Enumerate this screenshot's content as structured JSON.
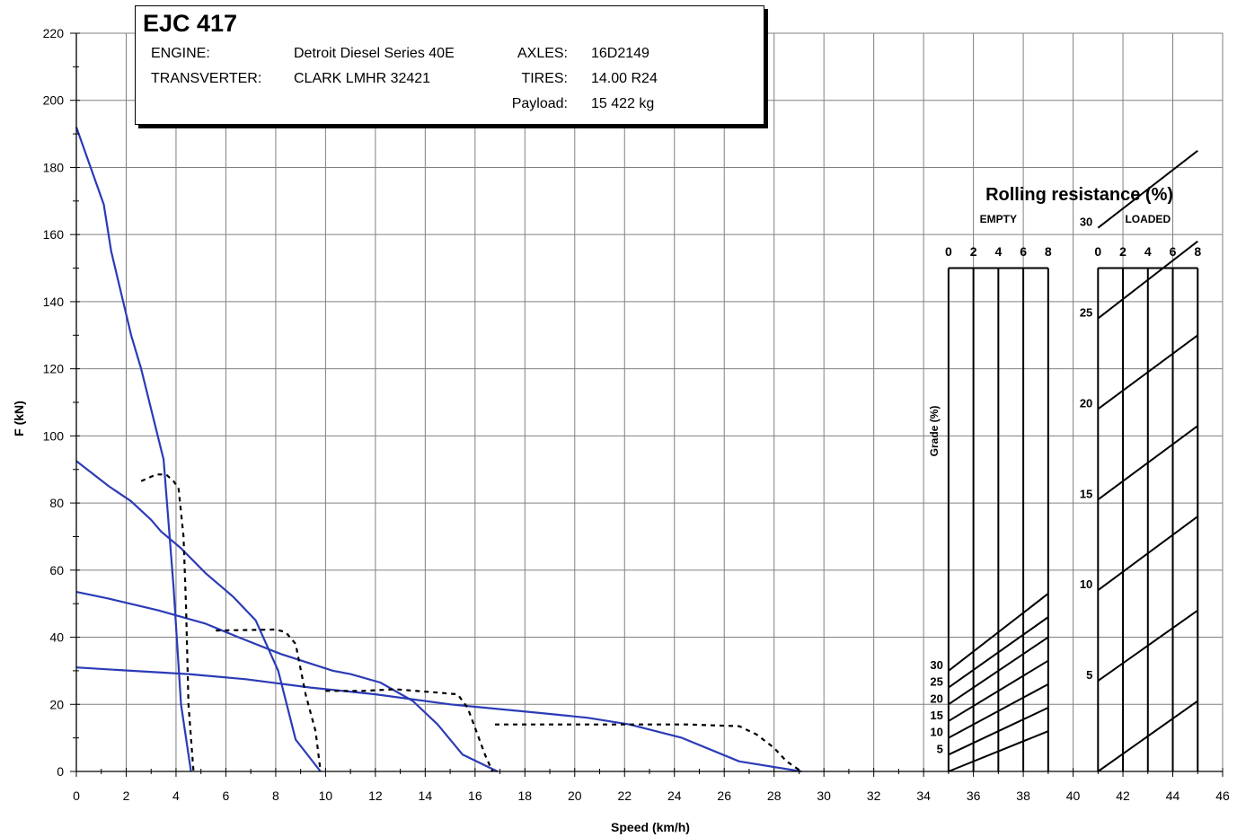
{
  "info_box": {
    "title": "EJC 417",
    "engine_label": "ENGINE:",
    "engine_value": "Detroit Diesel Series 40E",
    "transverter_label": "TRANSVERTER:",
    "transverter_value": "CLARK LMHR 32421",
    "axles_label": "AXLES:",
    "axles_value": "16D2149",
    "tires_label": "TIRES:",
    "tires_value": "14.00 R24",
    "payload_label": "Payload:",
    "payload_value": "15 422 kg"
  },
  "chart_data": {
    "type": "line",
    "xlabel": "Speed (km/h)",
    "ylabel": "F (kN)",
    "xlim": [
      0,
      46
    ],
    "ylim": [
      0,
      220
    ],
    "x_ticks": [
      "0",
      "2",
      "4",
      "6",
      "8",
      "10",
      "12",
      "14",
      "16",
      "18",
      "20",
      "22",
      "24",
      "26",
      "28",
      "30",
      "32",
      "34",
      "36",
      "38",
      "40",
      "42",
      "44",
      "46"
    ],
    "y_ticks": [
      "0",
      "20",
      "40",
      "60",
      "80",
      "100",
      "120",
      "140",
      "160",
      "180",
      "200",
      "220"
    ],
    "grid": true,
    "colors": {
      "tractive": "#2b3bb6",
      "retarder": "#000000",
      "grid": "#808080"
    },
    "series": [
      {
        "style": "solid",
        "points": [
          [
            0,
            192
          ],
          [
            1.1,
            169
          ],
          [
            1.4,
            155
          ],
          [
            2.2,
            130
          ],
          [
            2.6,
            120
          ],
          [
            3.4,
            96
          ],
          [
            3.5,
            93
          ],
          [
            3.9,
            55
          ],
          [
            4.2,
            20
          ],
          [
            4.6,
            0
          ]
        ]
      },
      {
        "style": "solid",
        "points": [
          [
            0,
            92.5
          ],
          [
            1.3,
            85
          ],
          [
            2.2,
            80.5
          ],
          [
            3,
            75
          ],
          [
            3.4,
            71.5
          ],
          [
            4.2,
            66.5
          ],
          [
            5.2,
            59
          ],
          [
            6.3,
            52
          ],
          [
            7.2,
            45
          ],
          [
            8.1,
            30
          ],
          [
            8.8,
            9.5
          ],
          [
            9.8,
            0
          ]
        ]
      },
      {
        "style": "solid",
        "points": [
          [
            0,
            53.5
          ],
          [
            1.3,
            51.5
          ],
          [
            3.3,
            48
          ],
          [
            5.2,
            44
          ],
          [
            6.5,
            40
          ],
          [
            8.2,
            35
          ],
          [
            10.3,
            30
          ],
          [
            11,
            29
          ],
          [
            12.2,
            26.5
          ],
          [
            13.5,
            21
          ],
          [
            14.5,
            14
          ],
          [
            15.5,
            5
          ],
          [
            16.9,
            0
          ]
        ]
      },
      {
        "style": "solid",
        "points": [
          [
            0,
            31
          ],
          [
            2.2,
            30
          ],
          [
            4.5,
            29
          ],
          [
            6.8,
            27.5
          ],
          [
            9.4,
            25
          ],
          [
            12,
            23
          ],
          [
            15,
            20
          ],
          [
            18.5,
            17.5
          ],
          [
            20.5,
            16
          ],
          [
            22.2,
            14
          ],
          [
            24.3,
            10
          ],
          [
            26.6,
            3
          ],
          [
            29.1,
            0
          ]
        ]
      },
      {
        "style": "dashed",
        "points": [
          [
            2.6,
            86.5
          ],
          [
            3.2,
            88.5
          ],
          [
            3.6,
            88.5
          ],
          [
            3.9,
            86.5
          ],
          [
            4.1,
            84.5
          ],
          [
            4.3,
            70
          ],
          [
            4.4,
            49
          ],
          [
            4.5,
            20
          ],
          [
            4.7,
            0
          ]
        ]
      },
      {
        "style": "dashed",
        "points": [
          [
            5.6,
            42
          ],
          [
            8,
            42.3
          ],
          [
            8.4,
            41.5
          ],
          [
            8.8,
            38
          ],
          [
            9.2,
            23
          ],
          [
            9.6,
            12
          ],
          [
            9.8,
            0
          ]
        ]
      },
      {
        "style": "dashed",
        "points": [
          [
            10,
            24
          ],
          [
            11.5,
            24
          ],
          [
            12.8,
            24.5
          ],
          [
            14.5,
            23.5
          ],
          [
            15.3,
            23
          ],
          [
            15.7,
            19
          ],
          [
            16.1,
            11
          ],
          [
            16.4,
            5
          ],
          [
            16.7,
            0
          ]
        ]
      },
      {
        "style": "dashed",
        "points": [
          [
            16.8,
            14
          ],
          [
            20,
            14
          ],
          [
            22.5,
            14
          ],
          [
            24.5,
            14
          ],
          [
            26.6,
            13.5
          ],
          [
            27.3,
            11
          ],
          [
            28,
            7
          ],
          [
            28.5,
            3
          ],
          [
            29.1,
            0
          ]
        ]
      }
    ],
    "nomogram": {
      "title": "Rolling resistance (%)",
      "grade_label": "Grade (%)",
      "rr_ticks": [
        "0",
        "2",
        "4",
        "6",
        "8"
      ],
      "panels": [
        {
          "label": "EMPTY",
          "x_range": [
            35,
            39
          ],
          "grade_labels": [
            "5",
            "10",
            "15",
            "20",
            "25",
            "30"
          ],
          "lines": [
            [
              0,
              12
            ],
            [
              5,
              19
            ],
            [
              10,
              26
            ],
            [
              15,
              33
            ],
            [
              20,
              40
            ],
            [
              25,
              46
            ],
            [
              30,
              53
            ]
          ]
        },
        {
          "label": "LOADED",
          "x_range": [
            41,
            45
          ],
          "grade_labels": [
            "5",
            "10",
            "15",
            "20",
            "25",
            "30"
          ],
          "lines": [
            [
              0,
              21
            ],
            [
              27,
              48
            ],
            [
              54,
              76
            ],
            [
              81,
              103
            ],
            [
              108,
              130
            ],
            [
              135,
              158
            ],
            [
              162,
              185
            ]
          ]
        }
      ],
      "y_top": 150
    }
  }
}
